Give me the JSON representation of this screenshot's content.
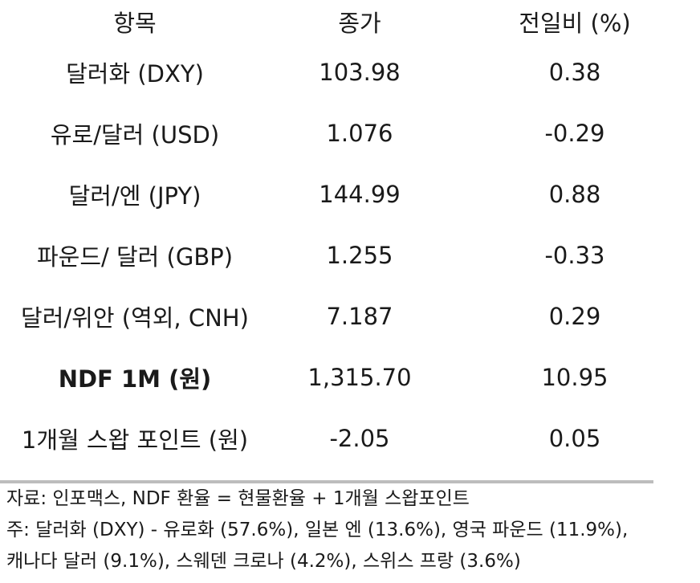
{
  "header": {
    "col1": "항목",
    "col2": "종가",
    "col3": "전일비 (%)"
  },
  "rows": [
    {
      "item": "달러화 (DXY)",
      "close": "103.98",
      "change": "0.38"
    },
    {
      "item": "유로/달러 (USD)",
      "close": "1.076",
      "change": "-0.29"
    },
    {
      "item": "달러/엔 (JPY)",
      "close": "144.99",
      "change": "0.88"
    },
    {
      "item": "파운드/ 달러 (GBP)",
      "close": "1.255",
      "change": "-0.33"
    },
    {
      "item": "달러/위안 (역외, CNH)",
      "close": "7.187",
      "change": "0.29"
    },
    {
      "item": "NDF 1M (원)",
      "close": "1,315.70",
      "change": "10.95"
    },
    {
      "item": "1개월 스왑 포인트 (원)",
      "close": "-2.05",
      "change": "0.05"
    }
  ],
  "notes": {
    "line1": "자료: 인포맥스, NDF 환율 = 현물환율 + 1개월 스왑포인트",
    "line2": "주: 달러화 (DXY) - 유로화 (57.6%), 일본 엔 (13.6%), 영국 파운드 (11.9%),",
    "line3": "캐나다 달러 (9.1%), 스웨덴 크로나 (4.2%), 스위스 프랑 (3.6%)"
  }
}
